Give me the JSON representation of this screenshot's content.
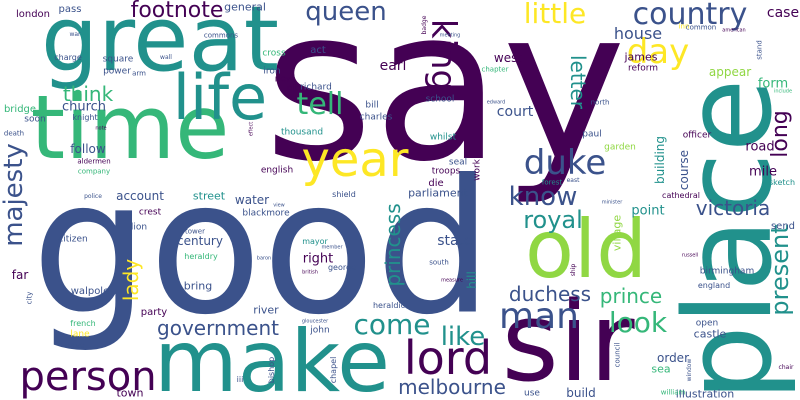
{
  "palette": {
    "dark_purple": "#440154",
    "indigo": "#3b528b",
    "blue": "#31688e",
    "teal": "#21918c",
    "green": "#35b779",
    "lime": "#90d743",
    "yellow": "#fde725",
    "light_green": "#5ec962"
  },
  "words": [
    {
      "id": "say",
      "text": "say"
    },
    {
      "id": "good",
      "text": "good"
    },
    {
      "id": "great",
      "text": "great"
    },
    {
      "id": "place",
      "text": "place"
    },
    {
      "id": "time",
      "text": "time"
    },
    {
      "id": "make",
      "text": "make"
    },
    {
      "id": "sir",
      "text": "sir"
    },
    {
      "id": "life",
      "text": "life"
    },
    {
      "id": "old",
      "text": "old"
    },
    {
      "id": "year",
      "text": "year"
    },
    {
      "id": "lord",
      "text": "lord"
    },
    {
      "id": "man",
      "text": "man"
    },
    {
      "id": "person",
      "text": "person"
    },
    {
      "id": "day",
      "text": "day"
    },
    {
      "id": "country",
      "text": "country"
    },
    {
      "id": "king",
      "text": "king"
    },
    {
      "id": "duke",
      "text": "duke"
    },
    {
      "id": "tell",
      "text": "tell"
    },
    {
      "id": "queen",
      "text": "queen"
    },
    {
      "id": "little",
      "text": "little"
    },
    {
      "id": "present",
      "text": "present"
    },
    {
      "id": "come",
      "text": "come"
    },
    {
      "id": "look",
      "text": "look"
    },
    {
      "id": "like",
      "text": "like"
    },
    {
      "id": "know",
      "text": "know"
    },
    {
      "id": "royal",
      "text": "royal"
    },
    {
      "id": "majesty",
      "text": "majesty"
    },
    {
      "id": "footnote",
      "text": "footnote"
    },
    {
      "id": "government",
      "text": "government"
    },
    {
      "id": "melbourne",
      "text": "melbourne"
    },
    {
      "id": "duchess",
      "text": "duchess"
    },
    {
      "id": "prince",
      "text": "prince"
    },
    {
      "id": "princess",
      "text": "princess"
    },
    {
      "id": "victoria",
      "text": "victoria"
    },
    {
      "id": "long",
      "text": "long"
    },
    {
      "id": "letter",
      "text": "letter"
    },
    {
      "id": "lady",
      "text": "lady"
    },
    {
      "id": "think",
      "text": "think"
    },
    {
      "id": "house",
      "text": "house"
    },
    {
      "id": "church",
      "text": "church"
    },
    {
      "id": "court",
      "text": "court"
    },
    {
      "id": "west",
      "text": "west"
    },
    {
      "id": "earl",
      "text": "earl"
    },
    {
      "id": "case",
      "text": "case"
    },
    {
      "id": "form",
      "text": "form"
    },
    {
      "id": "road",
      "text": "road"
    },
    {
      "id": "mile",
      "text": "mile"
    },
    {
      "id": "appear",
      "text": "appear"
    },
    {
      "id": "james",
      "text": "james"
    },
    {
      "id": "reform",
      "text": "reform"
    },
    {
      "id": "course",
      "text": "course"
    },
    {
      "id": "building",
      "text": "building"
    },
    {
      "id": "point",
      "text": "point"
    },
    {
      "id": "village",
      "text": "village"
    },
    {
      "id": "state",
      "text": "state"
    },
    {
      "id": "right",
      "text": "right"
    },
    {
      "id": "century",
      "text": "century"
    },
    {
      "id": "follow",
      "text": "follow"
    },
    {
      "id": "account",
      "text": "account"
    },
    {
      "id": "water",
      "text": "water"
    },
    {
      "id": "street",
      "text": "street"
    },
    {
      "id": "parliament",
      "text": "parliament"
    },
    {
      "id": "hill",
      "text": "hill"
    },
    {
      "id": "order",
      "text": "order"
    },
    {
      "id": "castle",
      "text": "castle"
    },
    {
      "id": "open",
      "text": "open"
    },
    {
      "id": "sea",
      "text": "sea"
    },
    {
      "id": "build",
      "text": "build"
    },
    {
      "id": "illustration",
      "text": "illustration"
    },
    {
      "id": "town",
      "text": "town"
    },
    {
      "id": "river",
      "text": "river"
    },
    {
      "id": "party",
      "text": "party"
    },
    {
      "id": "bring",
      "text": "bring"
    },
    {
      "id": "far",
      "text": "far"
    },
    {
      "id": "walpole",
      "text": "walpole"
    },
    {
      "id": "soon",
      "text": "soon"
    },
    {
      "id": "bridge",
      "text": "bridge"
    },
    {
      "id": "london",
      "text": "london"
    },
    {
      "id": "pass",
      "text": "pass"
    },
    {
      "id": "general",
      "text": "general"
    },
    {
      "id": "square",
      "text": "square"
    },
    {
      "id": "power",
      "text": "power"
    },
    {
      "id": "act",
      "text": "act"
    },
    {
      "id": "new",
      "text": "new"
    },
    {
      "id": "pitt",
      "text": "pitt"
    },
    {
      "id": "richard",
      "text": "richard"
    },
    {
      "id": "bill",
      "text": "bill"
    },
    {
      "id": "charles",
      "text": "charles"
    },
    {
      "id": "school",
      "text": "school"
    },
    {
      "id": "thousand",
      "text": "thousand"
    },
    {
      "id": "english",
      "text": "english"
    },
    {
      "id": "seal",
      "text": "seal"
    },
    {
      "id": "whilst",
      "text": "whilst"
    },
    {
      "id": "troops",
      "text": "troops"
    },
    {
      "id": "die",
      "text": "die"
    },
    {
      "id": "work",
      "text": "work"
    },
    {
      "id": "paul",
      "text": "paul"
    },
    {
      "id": "garden",
      "text": "garden"
    },
    {
      "id": "officer",
      "text": "officer"
    },
    {
      "id": "cathedral",
      "text": "cathedral"
    },
    {
      "id": "sketch",
      "text": "sketch"
    },
    {
      "id": "send",
      "text": "send"
    },
    {
      "id": "birmingham",
      "text": "birmingham"
    },
    {
      "id": "england",
      "text": "england"
    },
    {
      "id": "north",
      "text": "north"
    },
    {
      "id": "crest",
      "text": "crest"
    },
    {
      "id": "lion",
      "text": "lion"
    },
    {
      "id": "blackmore",
      "text": "blackmore"
    },
    {
      "id": "tower",
      "text": "tower"
    },
    {
      "id": "heraldry",
      "text": "heraldry"
    },
    {
      "id": "mayor",
      "text": "mayor"
    },
    {
      "id": "george",
      "text": "george"
    },
    {
      "id": "citizen",
      "text": "citizen"
    },
    {
      "id": "french",
      "text": "french"
    },
    {
      "id": "lane",
      "text": "lane"
    },
    {
      "id": "nave",
      "text": "nave"
    },
    {
      "id": "john",
      "text": "john"
    },
    {
      "id": "heraldic",
      "text": "heraldic"
    },
    {
      "id": "bishop",
      "text": "bishop"
    },
    {
      "id": "chapel",
      "text": "chapel"
    },
    {
      "id": "council",
      "text": "council"
    },
    {
      "id": "use",
      "text": "use"
    },
    {
      "id": "william",
      "text": "william"
    },
    {
      "id": "window",
      "text": "window"
    },
    {
      "id": "iii",
      "text": "iii"
    },
    {
      "id": "shield",
      "text": "shield"
    },
    {
      "id": "forest",
      "text": "forest"
    },
    {
      "id": "east",
      "text": "east"
    },
    {
      "id": "death",
      "text": "death"
    },
    {
      "id": "knight",
      "text": "knight"
    },
    {
      "id": "aldermen",
      "text": "aldermen"
    },
    {
      "id": "company",
      "text": "company"
    },
    {
      "id": "commons",
      "text": "commons"
    },
    {
      "id": "wall",
      "text": "wall"
    },
    {
      "id": "cross",
      "text": "cross"
    },
    {
      "id": "iron",
      "text": "iron"
    },
    {
      "id": "arm",
      "text": "arm"
    },
    {
      "id": "war",
      "text": "war"
    },
    {
      "id": "charge",
      "text": "charge"
    },
    {
      "id": "badge",
      "text": "badge"
    },
    {
      "id": "meeting",
      "text": "meeting"
    },
    {
      "id": "chapter",
      "text": "chapter"
    },
    {
      "id": "inn",
      "text": "inn"
    },
    {
      "id": "common",
      "text": "common"
    },
    {
      "id": "american",
      "text": "american"
    },
    {
      "id": "stand",
      "text": "stand"
    },
    {
      "id": "police",
      "text": "police"
    },
    {
      "id": "city",
      "text": "city"
    },
    {
      "id": "minister",
      "text": "minister"
    },
    {
      "id": "ship",
      "text": "ship"
    },
    {
      "id": "measure",
      "text": "measure"
    },
    {
      "id": "south",
      "text": "south"
    },
    {
      "id": "member",
      "text": "member"
    },
    {
      "id": "british",
      "text": "british"
    },
    {
      "id": "baron",
      "text": "baron"
    },
    {
      "id": "gloucester",
      "text": "gloucester"
    },
    {
      "id": "edward",
      "text": "edward"
    },
    {
      "id": "effect",
      "text": "effect"
    },
    {
      "id": "view",
      "text": "view"
    },
    {
      "id": "note",
      "text": "note"
    },
    {
      "id": "russell",
      "text": "russell"
    },
    {
      "id": "chair",
      "text": "chair"
    },
    {
      "id": "include",
      "text": "include"
    }
  ]
}
